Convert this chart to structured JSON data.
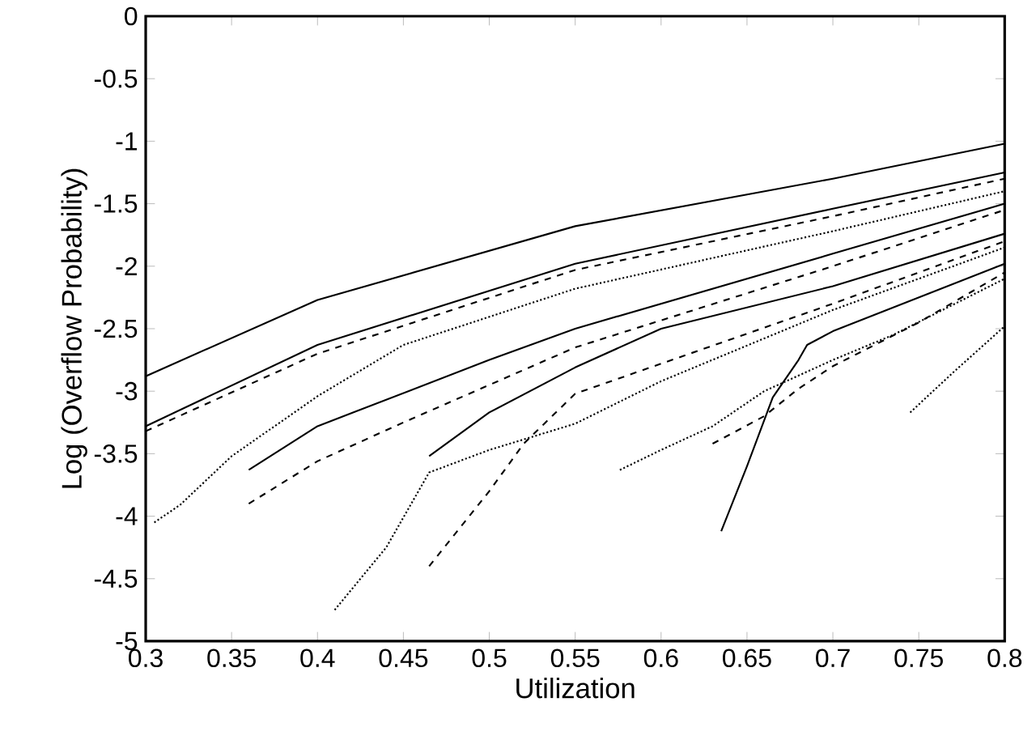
{
  "chart_data": {
    "type": "line",
    "xlabel": "Utilization",
    "ylabel": "Log (Overflow Probability)",
    "xlim": [
      0.3,
      0.8
    ],
    "ylim": [
      -5,
      0
    ],
    "xticks": [
      0.3,
      0.35,
      0.4,
      0.45,
      0.5,
      0.55,
      0.6,
      0.65,
      0.7,
      0.75,
      0.8
    ],
    "yticks": [
      -5,
      -4.5,
      -4,
      -3.5,
      -3,
      -2.5,
      -2,
      -1.5,
      -1,
      -0.5,
      0
    ],
    "grid": false,
    "marker": "none",
    "series": [
      {
        "color": "#000000",
        "line_style": "solid",
        "x": [
          0.3,
          0.4,
          0.55,
          0.7,
          0.8
        ],
        "values": [
          -2.88,
          -2.27,
          -1.68,
          -1.3,
          -1.02
        ]
      },
      {
        "color": "#000000",
        "line_style": "solid",
        "x": [
          0.3,
          0.4,
          0.55,
          0.7,
          0.8
        ],
        "values": [
          -3.28,
          -2.63,
          -1.98,
          -1.54,
          -1.25
        ]
      },
      {
        "color": "#000000",
        "line_style": "dashed",
        "x": [
          0.3,
          0.4,
          0.55,
          0.7,
          0.8
        ],
        "values": [
          -3.32,
          -2.7,
          -2.03,
          -1.6,
          -1.3
        ]
      },
      {
        "color": "#000000",
        "line_style": "dotted",
        "x": [
          0.305,
          0.32,
          0.35,
          0.4,
          0.45,
          0.55,
          0.7,
          0.8
        ],
        "values": [
          -4.05,
          -3.91,
          -3.52,
          -3.04,
          -2.63,
          -2.18,
          -1.72,
          -1.4
        ]
      },
      {
        "color": "#000000",
        "line_style": "solid",
        "x": [
          0.36,
          0.4,
          0.5,
          0.55,
          0.7,
          0.8
        ],
        "values": [
          -3.63,
          -3.28,
          -2.75,
          -2.5,
          -1.9,
          -1.5
        ]
      },
      {
        "color": "#000000",
        "line_style": "dashed",
        "x": [
          0.36,
          0.4,
          0.45,
          0.5,
          0.55,
          0.7,
          0.8
        ],
        "values": [
          -3.9,
          -3.56,
          -3.25,
          -2.95,
          -2.65,
          -2.0,
          -1.55
        ]
      },
      {
        "color": "#000000",
        "line_style": "dotted",
        "x": [
          0.41,
          0.44,
          0.465,
          0.5,
          0.55,
          0.6,
          0.7,
          0.8
        ],
        "values": [
          -4.75,
          -4.25,
          -3.65,
          -3.47,
          -3.26,
          -2.92,
          -2.35,
          -1.85
        ]
      },
      {
        "color": "#000000",
        "line_style": "solid",
        "x": [
          0.465,
          0.5,
          0.55,
          0.6,
          0.7,
          0.8
        ],
        "values": [
          -3.52,
          -3.17,
          -2.81,
          -2.5,
          -2.16,
          -1.74
        ]
      },
      {
        "color": "#000000",
        "line_style": "dashed",
        "x": [
          0.465,
          0.5,
          0.52,
          0.55,
          0.6,
          0.7,
          0.8
        ],
        "values": [
          -4.4,
          -3.8,
          -3.42,
          -3.02,
          -2.78,
          -2.3,
          -1.8
        ]
      },
      {
        "color": "#000000",
        "line_style": "solid",
        "x": [
          0.635,
          0.65,
          0.665,
          0.68,
          0.685,
          0.7,
          0.75,
          0.8
        ],
        "values": [
          -4.12,
          -3.6,
          -3.05,
          -2.75,
          -2.63,
          -2.52,
          -2.25,
          -1.98
        ]
      },
      {
        "color": "#000000",
        "line_style": "dashed",
        "x": [
          0.63,
          0.66,
          0.68,
          0.7,
          0.75,
          0.8
        ],
        "values": [
          -3.42,
          -3.2,
          -2.98,
          -2.8,
          -2.45,
          -2.05
        ]
      },
      {
        "color": "#000000",
        "line_style": "dotted",
        "x": [
          0.576,
          0.6,
          0.63,
          0.66,
          0.7,
          0.735,
          0.8
        ],
        "values": [
          -3.63,
          -3.47,
          -3.28,
          -3.0,
          -2.75,
          -2.55,
          -2.1
        ]
      },
      {
        "color": "#000000",
        "line_style": "dotted",
        "x": [
          0.745,
          0.77,
          0.8
        ],
        "values": [
          -3.17,
          -2.85,
          -2.48
        ]
      }
    ]
  }
}
